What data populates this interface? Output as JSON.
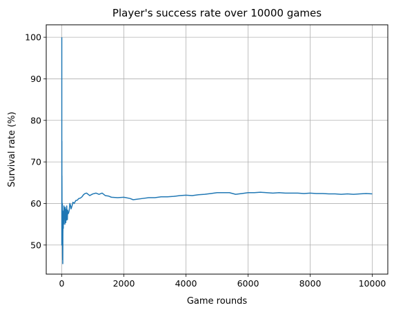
{
  "chart_data": {
    "type": "line",
    "title": "Player's success rate over 10000 games",
    "xlabel": "Game rounds",
    "ylabel": "Survival rate (%)",
    "xlim": [
      -500,
      10500
    ],
    "ylim": [
      43,
      103
    ],
    "xticks": [
      0,
      2000,
      4000,
      6000,
      8000,
      10000
    ],
    "yticks": [
      50,
      60,
      70,
      80,
      90,
      100
    ],
    "grid": true,
    "series": [
      {
        "color": "#1f77b4",
        "x": [
          1,
          2,
          3,
          4,
          5,
          6,
          8,
          10,
          12,
          15,
          18,
          20,
          22,
          25,
          28,
          30,
          33,
          36,
          40,
          45,
          50,
          55,
          60,
          65,
          70,
          80,
          90,
          100,
          110,
          120,
          130,
          140,
          150,
          160,
          170,
          180,
          190,
          200,
          220,
          240,
          260,
          280,
          300,
          330,
          360,
          400,
          450,
          500,
          550,
          600,
          650,
          700,
          750,
          800,
          900,
          1000,
          1100,
          1200,
          1300,
          1400,
          1500,
          1600,
          1800,
          2000,
          2200,
          2300,
          2400,
          2600,
          2800,
          3000,
          3200,
          3400,
          3600,
          3800,
          4000,
          4200,
          4400,
          4600,
          4800,
          5000,
          5200,
          5400,
          5600,
          5800,
          6000,
          6200,
          6400,
          6600,
          6800,
          7000,
          7200,
          7400,
          7600,
          7800,
          8000,
          8200,
          8400,
          8600,
          8800,
          9000,
          9200,
          9400,
          9600,
          9800,
          10000
        ],
        "y": [
          100,
          50,
          66.7,
          75,
          60,
          66.7,
          62.5,
          50,
          58.3,
          53.3,
          55.6,
          60,
          54.5,
          48,
          46.4,
          50,
          45.5,
          52.8,
          55,
          57.8,
          54,
          58.2,
          55,
          56.9,
          59.4,
          56.3,
          58.9,
          55,
          59.1,
          57.5,
          55.4,
          58.6,
          56,
          59.4,
          57.1,
          56.1,
          58.4,
          57.5,
          57.7,
          58.3,
          60,
          59.6,
          58.7,
          59.4,
          60.3,
          60,
          60.7,
          60.8,
          61.2,
          61.3,
          61.6,
          62.1,
          62.4,
          62.5,
          61.9,
          62.3,
          62.5,
          62.2,
          62.5,
          61.9,
          61.8,
          61.5,
          61.4,
          61.5,
          61.2,
          60.9,
          61,
          61.2,
          61.4,
          61.4,
          61.6,
          61.6,
          61.7,
          61.9,
          62,
          61.9,
          62.1,
          62.2,
          62.4,
          62.6,
          62.6,
          62.6,
          62.2,
          62.4,
          62.6,
          62.6,
          62.7,
          62.6,
          62.5,
          62.6,
          62.5,
          62.5,
          62.5,
          62.4,
          62.5,
          62.4,
          62.4,
          62.3,
          62.3,
          62.2,
          62.3,
          62.2,
          62.3,
          62.4,
          62.3
        ]
      }
    ]
  }
}
